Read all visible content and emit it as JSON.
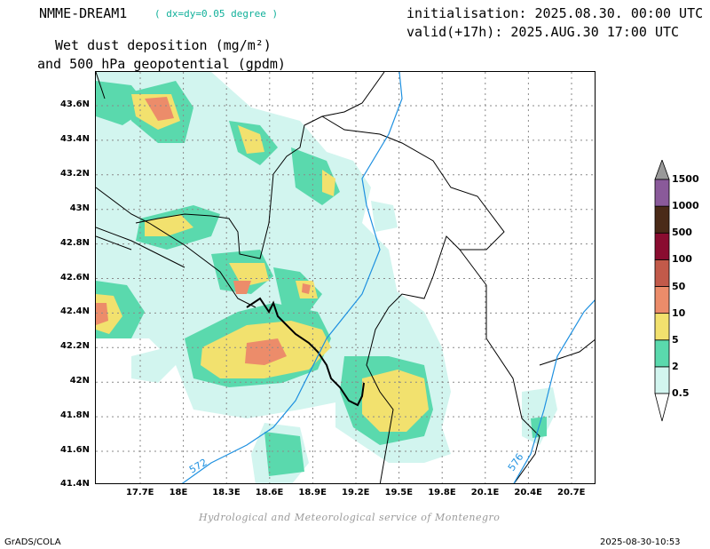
{
  "header": {
    "model_name": "NMME-DREAM1",
    "resolution": "( dx=dy=0.05 degree )",
    "product_line1": "Wet dust deposition (mg/m²)",
    "product_line2": "and 500 hPa geopotential (gpdm)",
    "init": "initialisation: 2025.08.30. 00:00 UTC",
    "valid": "valid(+17h): 2025.AUG.30 17:00 UTC"
  },
  "map": {
    "lat_labels": [
      "43.6N",
      "43.4N",
      "43.2N",
      "43N",
      "42.8N",
      "42.6N",
      "42.4N",
      "42.2N",
      "42N",
      "41.8N",
      "41.6N",
      "41.4N"
    ],
    "lon_labels": [
      "17.7E",
      "18E",
      "18.3E",
      "18.6E",
      "18.9E",
      "19.2E",
      "19.5E",
      "19.8E",
      "20.1E",
      "20.4E",
      "20.7E"
    ],
    "contours": [
      {
        "value": "572",
        "color": "#1e90e0"
      },
      {
        "value": "576",
        "color": "#1e90e0"
      }
    ]
  },
  "legend": {
    "levels": [
      "0.5",
      "2",
      "5",
      "10",
      "50",
      "100",
      "500",
      "1000",
      "1500"
    ],
    "colors": [
      "#d2f5ef",
      "#5ad9ad",
      "#f2e16e",
      "#ec8c6a",
      "#c25a4a",
      "#8a0c30",
      "#4a2a18",
      "#8a5a9a",
      "#999999"
    ]
  },
  "footer": {
    "credit": "Hydrological and Meteorological service of Montenegro",
    "left": "GrADS/COLA",
    "right": "2025-08-30-10:53"
  }
}
